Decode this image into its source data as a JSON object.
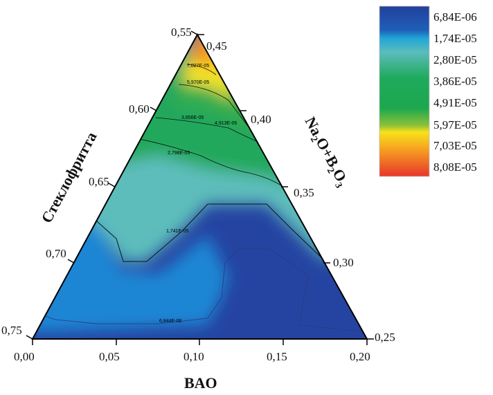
{
  "chart_data": {
    "type": "ternary-contour",
    "axes": {
      "bottom": {
        "label": "BAO",
        "ticks": [
          "0,00",
          "0,05",
          "0,10",
          "0,15",
          "0,20"
        ],
        "range": [
          0.0,
          0.2
        ]
      },
      "left": {
        "label": "Стеклофритта",
        "ticks": [
          "0,55",
          "0,60",
          "0,65",
          "0,70",
          "0,75"
        ],
        "range": [
          0.55,
          0.75
        ]
      },
      "right": {
        "label_parts": [
          "Na",
          "2",
          "O+B",
          "2",
          "O",
          "3"
        ],
        "ticks": [
          "0,45",
          "0,40",
          "0,35",
          "0,30",
          "0,25"
        ],
        "range": [
          0.25,
          0.45
        ]
      }
    },
    "legend": {
      "placement": "top-right",
      "levels": [
        "6,84E-06",
        "1,74E-05",
        "2,80E-05",
        "3,86E-05",
        "4,91E-05",
        "5,97E-05",
        "7,03E-05",
        "8,08E-05"
      ],
      "colors": [
        "#22409c",
        "#1f8fd6",
        "#5cbcbc",
        "#1faa5c",
        "#3bb04a",
        "#f8e21a",
        "#f59a22",
        "#e8352a"
      ]
    },
    "contour_labels": [
      "7,027E-05",
      "5,970E-05",
      "3,856E-05",
      "4,913E-05",
      "2,798E-05",
      "1,741E-05",
      "6,844E-06"
    ]
  }
}
